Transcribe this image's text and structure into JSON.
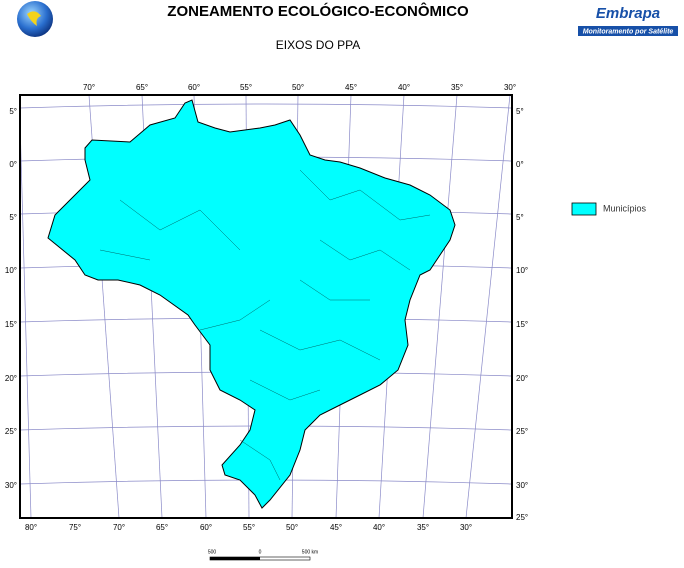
{
  "header": {
    "title": "ZONEAMENTO ECOLÓGICO-ECONÔMICO",
    "subtitle": "EIXOS DO PPA"
  },
  "logo": {
    "name": "Embrapa",
    "tagline": "Monitoramento por Satélite"
  },
  "legend": {
    "label": "Municípios"
  },
  "map": {
    "top_labels": [
      "70°",
      "65°",
      "60°",
      "55°",
      "50°",
      "45°",
      "40°",
      "35°",
      "30°"
    ],
    "left_labels": [
      "5°",
      "0°",
      "5°",
      "10°",
      "15°",
      "20°",
      "25°",
      "30°"
    ],
    "right_labels": [
      "5°",
      "0°",
      "5°",
      "10°",
      "15°",
      "20°",
      "25°",
      "30°",
      "25°"
    ],
    "bottom_labels": [
      "80°",
      "75°",
      "70°",
      "65°",
      "60°",
      "55°",
      "50°",
      "45°",
      "40°",
      "35°",
      "30°"
    ]
  },
  "scale": {
    "labels": [
      "500",
      "0",
      "500 km"
    ]
  }
}
